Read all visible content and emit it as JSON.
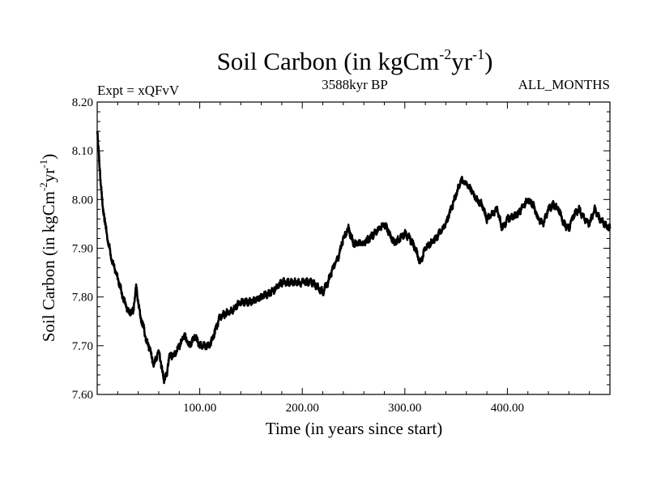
{
  "chart_data": {
    "type": "line",
    "title": "Soil Carbon (in kgCm",
    "title_sup1": "-2",
    "title_mid": "yr",
    "title_sup2": "-1",
    "title_end": ")",
    "subtitle_left": "Expt = xQFvV",
    "subtitle_center": "3588kyr BP",
    "subtitle_right": "ALL_MONTHS",
    "xlabel": "Time (in years since start)",
    "ylabel": "Soil Carbon (in kgCm",
    "ylabel_sup1": "-2",
    "ylabel_mid": "yr",
    "ylabel_sup2": "-1",
    "ylabel_end": ")",
    "xlim": [
      0,
      500
    ],
    "ylim": [
      7.6,
      8.2
    ],
    "xticks": [
      100,
      200,
      300,
      400
    ],
    "xtick_labels": [
      "100.00",
      "200.00",
      "300.00",
      "400.00"
    ],
    "yticks": [
      7.6,
      7.7,
      7.8,
      7.9,
      8.0,
      8.1,
      8.2
    ],
    "ytick_labels": [
      "7.60",
      "7.70",
      "7.80",
      "7.90",
      "8.00",
      "8.10",
      "8.20"
    ],
    "series": [
      {
        "name": "Soil Carbon",
        "color": "#000000",
        "x": [
          0,
          2,
          5,
          10,
          15,
          20,
          25,
          30,
          35,
          38,
          42,
          45,
          48,
          52,
          55,
          60,
          65,
          68,
          70,
          75,
          80,
          85,
          90,
          95,
          100,
          105,
          110,
          115,
          120,
          130,
          140,
          150,
          160,
          170,
          180,
          190,
          200,
          210,
          220,
          225,
          230,
          235,
          240,
          245,
          250,
          260,
          270,
          280,
          290,
          300,
          305,
          310,
          315,
          320,
          330,
          340,
          345,
          350,
          355,
          360,
          365,
          370,
          375,
          380,
          385,
          390,
          395,
          400,
          410,
          420,
          425,
          430,
          435,
          440,
          445,
          450,
          455,
          460,
          465,
          470,
          475,
          480,
          485,
          490,
          495,
          500
        ],
        "values": [
          8.14,
          8.08,
          7.99,
          7.92,
          7.87,
          7.84,
          7.8,
          7.77,
          7.77,
          7.82,
          7.76,
          7.74,
          7.71,
          7.69,
          7.66,
          7.69,
          7.63,
          7.64,
          7.68,
          7.68,
          7.7,
          7.72,
          7.7,
          7.72,
          7.7,
          7.7,
          7.7,
          7.73,
          7.76,
          7.77,
          7.79,
          7.79,
          7.8,
          7.81,
          7.83,
          7.83,
          7.83,
          7.83,
          7.81,
          7.83,
          7.86,
          7.88,
          7.92,
          7.94,
          7.91,
          7.91,
          7.93,
          7.95,
          7.91,
          7.93,
          7.92,
          7.9,
          7.87,
          7.9,
          7.92,
          7.95,
          7.98,
          8.01,
          8.04,
          8.03,
          8.02,
          8.0,
          7.99,
          7.96,
          7.97,
          7.98,
          7.94,
          7.96,
          7.97,
          8.0,
          7.99,
          7.96,
          7.95,
          7.98,
          7.99,
          7.98,
          7.95,
          7.94,
          7.97,
          7.98,
          7.96,
          7.95,
          7.98,
          7.96,
          7.95,
          7.94
        ]
      }
    ]
  }
}
